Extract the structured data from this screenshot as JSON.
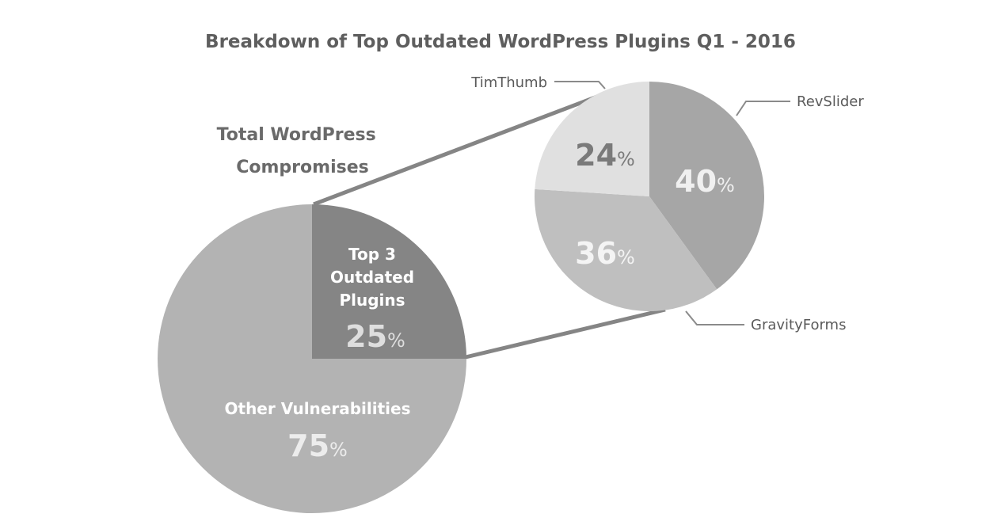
{
  "chart_data": [
    {
      "type": "pie",
      "title": "Breakdown of Top Outdated WordPress Plugins Q1 - 2016",
      "subtitle_lines": [
        "Total WordPress",
        "Compromises"
      ],
      "slices": [
        {
          "label_lines": [
            "Top 3",
            "Outdated",
            "Plugins"
          ],
          "value": 25,
          "value_text": "25",
          "unit": "%",
          "color": "#858585",
          "text_color": "#dedede"
        },
        {
          "label_lines": [
            "Other Vulnerabilities"
          ],
          "value": 75,
          "value_text": "75",
          "unit": "%",
          "color": "#b3b3b3",
          "text_color": "#ececec"
        }
      ]
    },
    {
      "type": "pie",
      "slices": [
        {
          "label": "RevSlider",
          "value": 40,
          "value_text": "40",
          "unit": "%",
          "color": "#a6a6a6",
          "text_color": "#f0f0f0"
        },
        {
          "label": "GravityForms",
          "value": 36,
          "value_text": "36",
          "unit": "%",
          "color": "#bfbfbf",
          "text_color": "#f4f4f4"
        },
        {
          "label": "TimThumb",
          "value": 24,
          "value_text": "24",
          "unit": "%",
          "color": "#e0e0e0",
          "text_color": "#7a7a7a"
        }
      ]
    }
  ]
}
